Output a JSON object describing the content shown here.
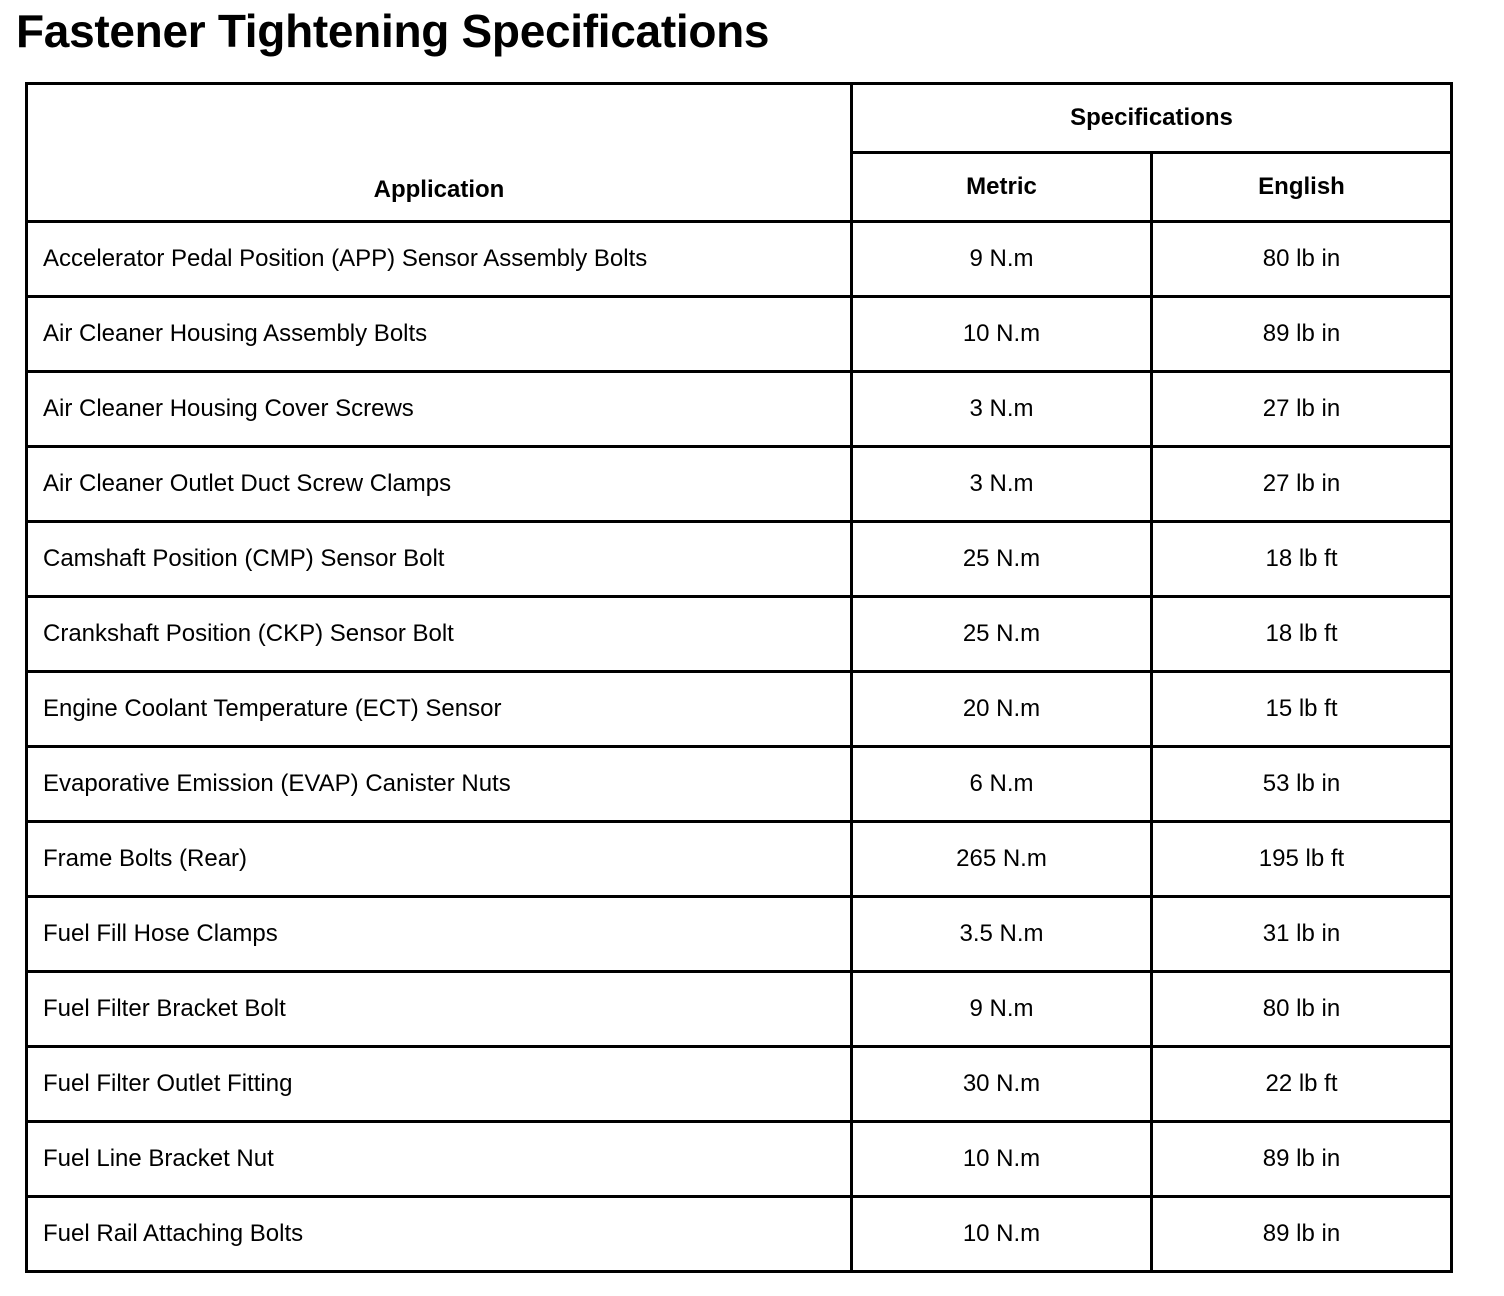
{
  "title": "Fastener Tightening Specifications",
  "table": {
    "headers": {
      "application": "Application",
      "specifications": "Specifications",
      "metric": "Metric",
      "english": "English"
    },
    "rows": [
      {
        "application": "Accelerator Pedal Position (APP) Sensor Assembly Bolts",
        "metric": "9 N.m",
        "english": "80 lb in"
      },
      {
        "application": "Air Cleaner Housing Assembly Bolts",
        "metric": "10 N.m",
        "english": "89 lb in"
      },
      {
        "application": "Air Cleaner Housing Cover Screws",
        "metric": "3 N.m",
        "english": "27 lb in"
      },
      {
        "application": "Air Cleaner Outlet Duct Screw Clamps",
        "metric": "3 N.m",
        "english": "27 lb in"
      },
      {
        "application": "Camshaft Position (CMP) Sensor Bolt",
        "metric": "25 N.m",
        "english": "18 lb ft"
      },
      {
        "application": "Crankshaft Position (CKP) Sensor Bolt",
        "metric": "25 N.m",
        "english": "18 lb ft"
      },
      {
        "application": "Engine Coolant Temperature (ECT) Sensor",
        "metric": "20 N.m",
        "english": "15 lb ft"
      },
      {
        "application": "Evaporative Emission (EVAP) Canister Nuts",
        "metric": "6 N.m",
        "english": "53 lb in"
      },
      {
        "application": "Frame Bolts (Rear)",
        "metric": "265 N.m",
        "english": "195 lb ft"
      },
      {
        "application": "Fuel Fill Hose Clamps",
        "metric": "3.5 N.m",
        "english": "31 lb in"
      },
      {
        "application": "Fuel Filter Bracket Bolt",
        "metric": "9 N.m",
        "english": "80 lb in"
      },
      {
        "application": "Fuel Filter Outlet Fitting",
        "metric": "30 N.m",
        "english": "22 lb ft"
      },
      {
        "application": "Fuel Line Bracket Nut",
        "metric": "10 N.m",
        "english": "89 lb in"
      },
      {
        "application": "Fuel Rail Attaching Bolts",
        "metric": "10 N.m",
        "english": "89 lb in"
      }
    ]
  }
}
